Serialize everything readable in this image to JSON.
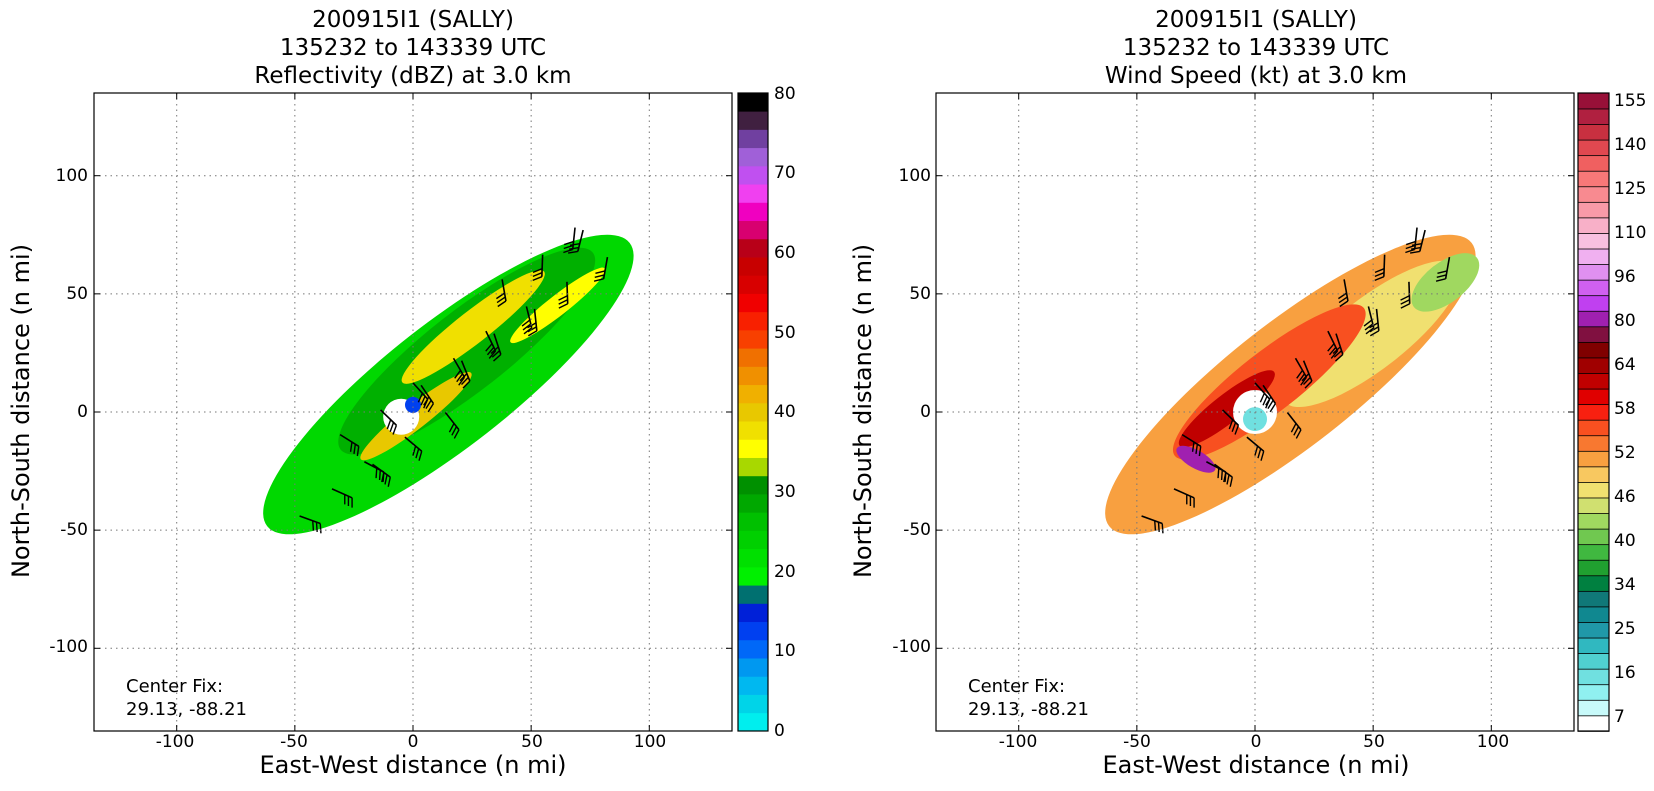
{
  "panels": [
    {
      "id": "reflectivity",
      "title_lines": [
        "200915I1 (SALLY)",
        "135232 to 143339 UTC",
        "Reflectivity (dBZ) at 3.0 km"
      ],
      "center_fix": [
        "Center Fix:",
        "29.13, -88.21"
      ],
      "colorbar_ticks": [
        "0",
        "10",
        "20",
        "30",
        "40",
        "50",
        "60",
        "70",
        "80"
      ],
      "colorbar_colors": [
        "#00eeee",
        "#00d4e8",
        "#00b8f0",
        "#0098f0",
        "#0068f8",
        "#0040f0",
        "#0020d8",
        "#007070",
        "#00f000",
        "#00e000",
        "#00d000",
        "#00c000",
        "#00a800",
        "#009000",
        "#a8d800",
        "#ffff00",
        "#f0e000",
        "#e8c800",
        "#f0b000",
        "#f09000",
        "#f07000",
        "#f84000",
        "#f82000",
        "#f00000",
        "#d80000",
        "#c80000",
        "#b80018",
        "#d80070",
        "#f000c0",
        "#f040f0",
        "#c050f0",
        "#a060d8",
        "#7040a0",
        "#402040",
        "#000000"
      ]
    },
    {
      "id": "windspeed",
      "title_lines": [
        "200915I1 (SALLY)",
        "135232 to 143339 UTC",
        "Wind Speed (kt) at 3.0 km"
      ],
      "center_fix": [
        "Center Fix:",
        "29.13, -88.21"
      ],
      "colorbar_ticks": [
        "7",
        "16",
        "25",
        "34",
        "40",
        "46",
        "52",
        "58",
        "64",
        "80",
        "96",
        "110",
        "125",
        "140",
        "155"
      ],
      "colorbar_colors": [
        "#ffffff",
        "#c8fafa",
        "#90f0f0",
        "#70e0e0",
        "#50d0d0",
        "#30b8c0",
        "#2098a8",
        "#108890",
        "#107878",
        "#008040",
        "#20a030",
        "#40b840",
        "#70c850",
        "#a0d860",
        "#d0e070",
        "#f0e070",
        "#f8c860",
        "#f8a040",
        "#f87830",
        "#f85020",
        "#f82010",
        "#e00000",
        "#c00000",
        "#a00000",
        "#800000",
        "#801040",
        "#a020b0",
        "#c040f0",
        "#d060f0",
        "#e090f0",
        "#f0b0f0",
        "#f8c0e0",
        "#f8b0c8",
        "#f89aa8",
        "#f88a90",
        "#f87878",
        "#f06060",
        "#e04850",
        "#c83040",
        "#b02040",
        "#981038"
      ]
    }
  ],
  "chart_data": [
    {
      "type": "heatmap",
      "title": "200915I1 (SALLY) 135232 to 143339 UTC Reflectivity (dBZ) at 3.0 km",
      "xlabel": "East-West distance (n mi)",
      "ylabel": "North-South distance (n mi)",
      "xlim": [
        -135,
        135
      ],
      "ylim": [
        -135,
        135
      ],
      "x_ticks": [
        -100,
        -50,
        0,
        50,
        100
      ],
      "y_ticks": [
        -100,
        -50,
        0,
        50,
        100
      ],
      "grid": true,
      "colorbar": {
        "label": "dBZ",
        "min": 0,
        "max": 80,
        "ticks": [
          0,
          10,
          20,
          30,
          40,
          50,
          60,
          70,
          80
        ]
      },
      "note": "Center Fix: 29.13, -88.21"
    },
    {
      "type": "heatmap",
      "title": "200915I1 (SALLY) 135232 to 143339 UTC Wind Speed (kt) at 3.0 km",
      "xlabel": "East-West distance (n mi)",
      "ylabel": "North-South distance (n mi)",
      "xlim": [
        -135,
        135
      ],
      "ylim": [
        -135,
        135
      ],
      "x_ticks": [
        -100,
        -50,
        0,
        50,
        100
      ],
      "y_ticks": [
        -100,
        -50,
        0,
        50,
        100
      ],
      "grid": true,
      "colorbar": {
        "label": "kt",
        "ticks": [
          7,
          16,
          25,
          34,
          40,
          46,
          52,
          58,
          64,
          80,
          96,
          110,
          125,
          140,
          155
        ]
      },
      "note": "Center Fix: 29.13, -88.21"
    }
  ],
  "axes": {
    "xlabel": "East-West distance (n mi)",
    "ylabel": "North-South distance (n mi)",
    "ticks": [
      "-100",
      "-50",
      "0",
      "50",
      "100"
    ]
  }
}
